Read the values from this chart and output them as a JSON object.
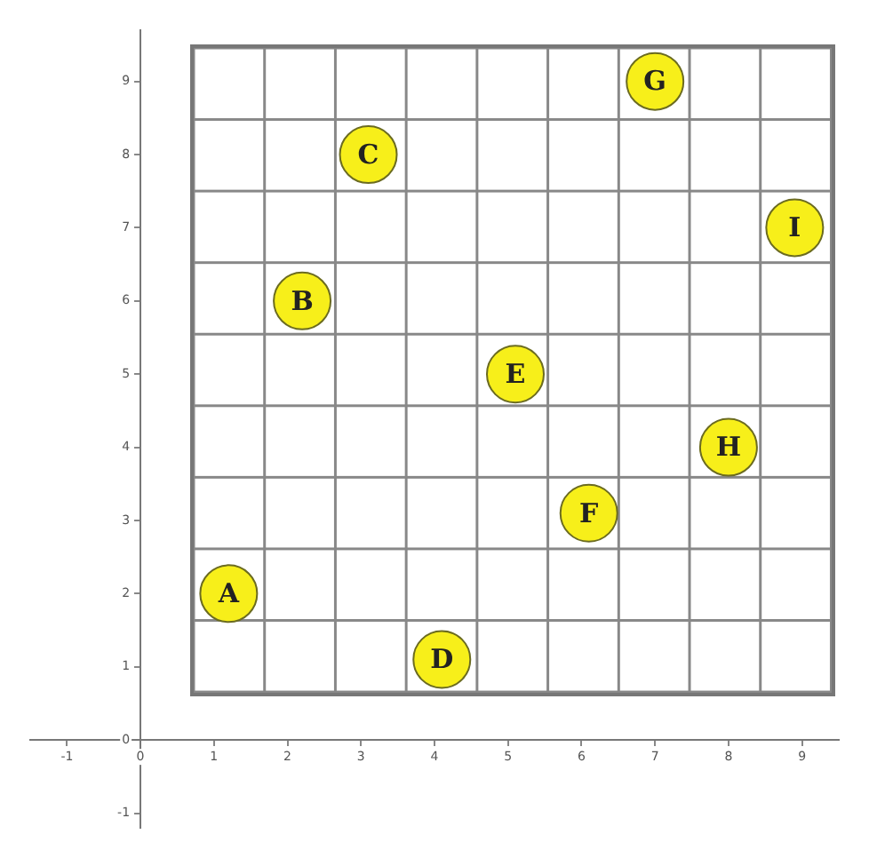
{
  "chart_data": {
    "type": "scatter",
    "x": [
      1.2,
      2.2,
      3.1,
      4.1,
      5.1,
      6.1,
      7,
      8,
      8.9
    ],
    "series": [
      {
        "color": "#f7ef1a",
        "values": [
          2,
          6,
          8,
          1.1,
          5,
          3.1,
          9,
          4,
          7
        ]
      }
    ],
    "marker": "circle",
    "xlim": [
      -1.5,
      9.5
    ],
    "xticks": [
      -1,
      0,
      1,
      2,
      3,
      4,
      5,
      6,
      7,
      8,
      9
    ],
    "ylim": [
      -1.2,
      9.7
    ],
    "yticks": [
      -1,
      0,
      1,
      2,
      3,
      4,
      5,
      6,
      7,
      8,
      9
    ],
    "grid": false,
    "legend": false,
    "annotations": [
      {
        "text": "A",
        "x": 1.2,
        "y": 2
      },
      {
        "text": "B",
        "x": 2.2,
        "y": 6
      },
      {
        "text": "C",
        "x": 3.1,
        "y": 8
      },
      {
        "text": "D",
        "x": 4.1,
        "y": 1.1
      },
      {
        "text": "E",
        "x": 5.1,
        "y": 5
      },
      {
        "text": "F",
        "x": 6.1,
        "y": 3.1
      },
      {
        "text": "G",
        "x": 7,
        "y": 9
      },
      {
        "text": "H",
        "x": 8,
        "y": 4
      },
      {
        "text": "I",
        "x": 8.9,
        "y": 7
      }
    ]
  }
}
